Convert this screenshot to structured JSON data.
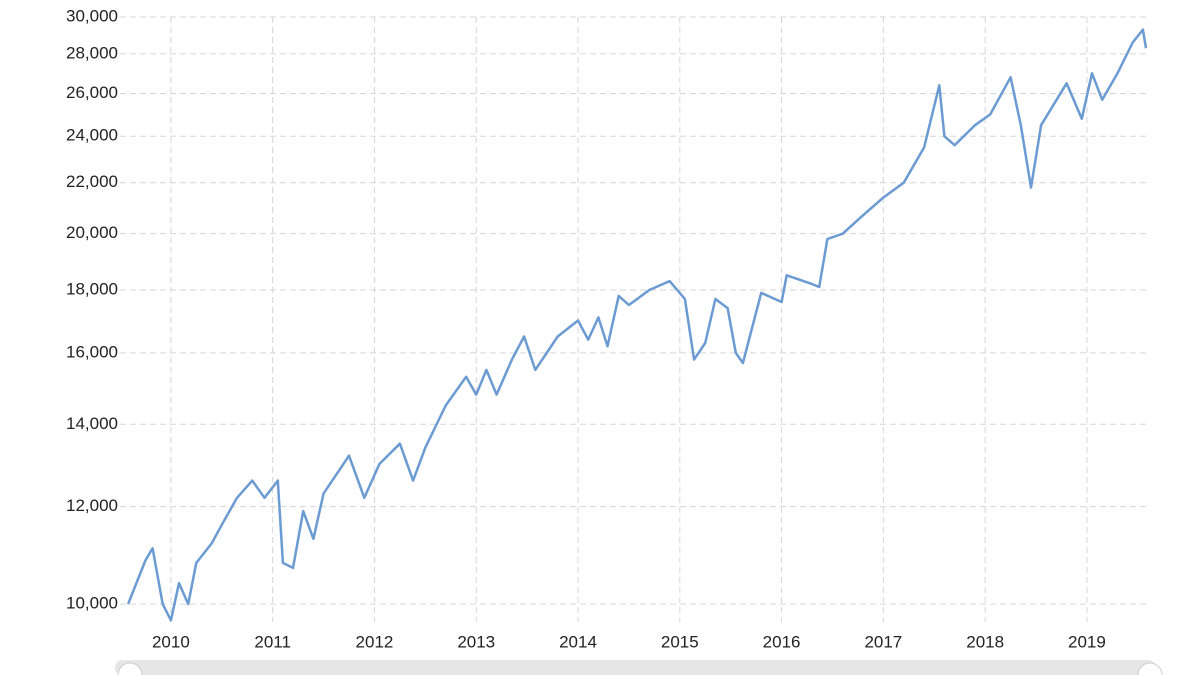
{
  "chart_data": {
    "type": "line",
    "x": [
      2010.08,
      2010.25,
      2010.32,
      2010.42,
      2010.5,
      2010.58,
      2010.67,
      2010.75,
      2010.9,
      2011.0,
      2011.15,
      2011.3,
      2011.42,
      2011.55,
      2011.6,
      2011.7,
      2011.8,
      2011.9,
      2012.0,
      2012.25,
      2012.4,
      2012.55,
      2012.75,
      2012.88,
      2013.0,
      2013.2,
      2013.4,
      2013.5,
      2013.6,
      2013.7,
      2013.85,
      2013.97,
      2014.08,
      2014.3,
      2014.5,
      2014.6,
      2014.7,
      2014.79,
      2014.9,
      2015.0,
      2015.2,
      2015.4,
      2015.55,
      2015.64,
      2015.75,
      2015.85,
      2015.97,
      2016.05,
      2016.12,
      2016.3,
      2016.5,
      2016.55,
      2016.8,
      2016.87,
      2016.95,
      2017.1,
      2017.3,
      2017.5,
      2017.7,
      2017.9,
      2018.05,
      2018.1,
      2018.2,
      2018.4,
      2018.55,
      2018.75,
      2018.85,
      2018.95,
      2019.05,
      2019.3,
      2019.45,
      2019.55,
      2019.65,
      2019.8,
      2019.95,
      2020.05,
      2020.08
    ],
    "series": [
      {
        "color": "#6b9bd2",
        "values": [
          10000,
          10850,
          11100,
          10000,
          9700,
          10400,
          10000,
          10800,
          11200,
          11600,
          12200,
          12600,
          12200,
          12600,
          10800,
          10700,
          11900,
          11300,
          12300,
          13200,
          12200,
          13000,
          13500,
          12600,
          13400,
          14500,
          15300,
          14800,
          15500,
          14800,
          15800,
          16500,
          15500,
          16500,
          17000,
          16400,
          17100,
          16200,
          17800,
          17500,
          18000,
          18300,
          17700,
          15800,
          16300,
          17700,
          17400,
          16000,
          15700,
          17900,
          17600,
          18500,
          18200,
          18100,
          19800,
          20000,
          20700,
          21400,
          22000,
          23500,
          26400,
          24000,
          23600,
          24500,
          25000,
          26800,
          24500,
          21800,
          24500,
          26500,
          24800,
          27000,
          25700,
          27000,
          28600,
          29300,
          28300
        ]
      }
    ],
    "xlim": [
      2010,
      2020.1
    ],
    "xticks": [
      {
        "value": 2010.5,
        "label": "2010"
      },
      {
        "value": 2011.5,
        "label": "2011"
      },
      {
        "value": 2012.5,
        "label": "2012"
      },
      {
        "value": 2013.5,
        "label": "2013"
      },
      {
        "value": 2014.5,
        "label": "2014"
      },
      {
        "value": 2015.5,
        "label": "2015"
      },
      {
        "value": 2016.5,
        "label": "2016"
      },
      {
        "value": 2017.5,
        "label": "2017"
      },
      {
        "value": 2018.5,
        "label": "2018"
      },
      {
        "value": 2019.5,
        "label": "2019"
      }
    ],
    "ylim": [
      9670,
      30000
    ],
    "yticks": [
      {
        "value": 10000,
        "label": "10,000"
      },
      {
        "value": 12000,
        "label": "12,000"
      },
      {
        "value": 14000,
        "label": "14,000"
      },
      {
        "value": 16000,
        "label": "16,000"
      },
      {
        "value": 18000,
        "label": "18,000"
      },
      {
        "value": 20000,
        "label": "20,000"
      },
      {
        "value": 22000,
        "label": "22,000"
      },
      {
        "value": 24000,
        "label": "24,000"
      },
      {
        "value": 26000,
        "label": "26,000"
      },
      {
        "value": 28000,
        "label": "28,000"
      },
      {
        "value": 30000,
        "label": "30,000"
      }
    ],
    "y_scale": "log",
    "grid": true
  }
}
